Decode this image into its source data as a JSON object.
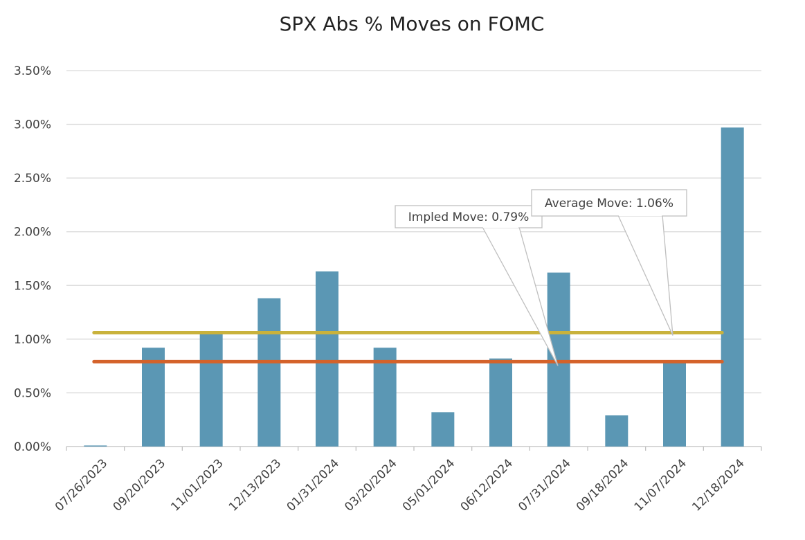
{
  "chart_data": {
    "type": "bar",
    "title": "SPX Abs % Moves on FOMC",
    "categories": [
      "07/26/2023",
      "09/20/2023",
      "11/01/2023",
      "12/13/2023",
      "01/31/2024",
      "03/20/2024",
      "05/01/2024",
      "06/12/2024",
      "07/31/2024",
      "09/18/2024",
      "11/07/2024",
      "12/18/2024"
    ],
    "values": [
      0.01,
      0.92,
      1.05,
      1.38,
      1.63,
      0.92,
      0.32,
      0.82,
      1.62,
      0.29,
      0.79,
      2.97
    ],
    "ylim": [
      0,
      3.5
    ],
    "yticks": [
      "0.00%",
      "0.50%",
      "1.00%",
      "1.50%",
      "2.00%",
      "2.50%",
      "3.00%",
      "3.50%"
    ],
    "ytick_values": [
      0,
      0.5,
      1.0,
      1.5,
      2.0,
      2.5,
      3.0,
      3.5
    ],
    "grid": true,
    "bar_color": "#5b97b4",
    "reference_lines": [
      {
        "value": 1.06,
        "color": "#c9b23c",
        "label": "Average Move: 1.06%"
      },
      {
        "value": 0.79,
        "color": "#d4622a",
        "label": "Impled Move: 0.79%"
      }
    ]
  }
}
